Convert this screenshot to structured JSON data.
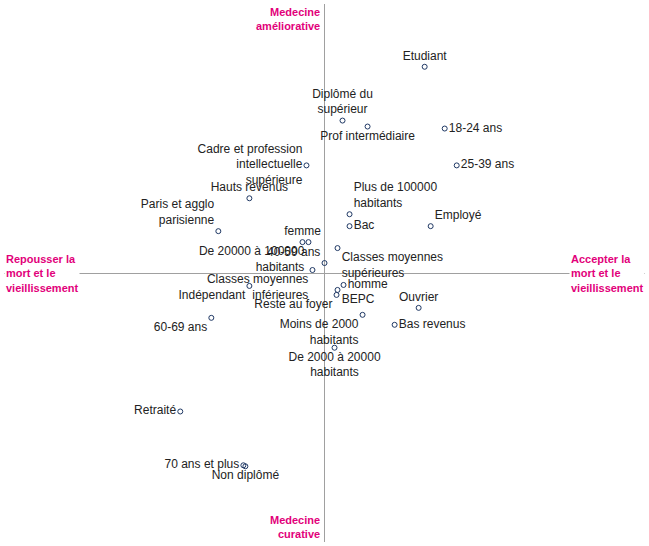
{
  "chart_data": {
    "type": "scatter",
    "labels": [
      "Etudiant",
      "Diplômé du supérieur",
      "Prof intermédiaire",
      "18-24 ans",
      "25-39 ans",
      "Cadre et profession intellectuelle supérieure",
      "Hauts revenus",
      "Paris et agglo parisienne",
      "Plus de 100000 habitants",
      "Bac",
      "Employé",
      "femme",
      "De 20000 à 100000 habitants",
      "Classes moyennes supérieures",
      "40-59 ans",
      "Classes moyennes inférieures",
      "homme",
      "BEPC",
      "Ouvrier",
      "Indépendant",
      "Reste au foyer",
      "Moins de 2000 habitants",
      "Bas revenus",
      "De 2000 à 20000 habitants",
      "60-69 ans",
      "Retraité",
      "70 ans et plus",
      "Non diplômé"
    ],
    "x": [
      1.0,
      0.18,
      0.43,
      1.2,
      1.32,
      -0.18,
      -0.75,
      -1.06,
      0.25,
      0.25,
      1.06,
      -0.22,
      -0.16,
      0.13,
      0.0,
      -0.12,
      0.19,
      0.13,
      0.94,
      -0.75,
      0.12,
      0.38,
      0.7,
      0.1,
      -1.13,
      -1.44,
      -0.81,
      -0.79
    ],
    "y": [
      2.07,
      1.53,
      1.47,
      1.45,
      1.08,
      1.08,
      0.75,
      0.42,
      0.59,
      0.47,
      0.47,
      0.31,
      0.31,
      0.25,
      0.1,
      0.03,
      -0.12,
      -0.17,
      -0.35,
      -0.13,
      -0.22,
      -0.42,
      -0.52,
      -0.75,
      -0.45,
      -1.39,
      -1.93,
      -1.94
    ],
    "color": "#1f3864",
    "marker": "circle-open",
    "annotations": {
      "top": "Medecine améliorative",
      "bottom": "Medecine curative",
      "left": "Repousser la mort et le vieillissement",
      "right": "Accepter la mort et le vieillissement"
    },
    "xlim": [
      -3.2,
      3.2
    ],
    "xticks": [
      -3.2,
      -1.6,
      0,
      1.6,
      3.2
    ],
    "ylim": [
      -2.7,
      2.7
    ],
    "yticks": [
      -2.7,
      -1.8,
      -0.9,
      0,
      0.9,
      1.8,
      2.7
    ],
    "grid": false,
    "tick_labels": false
  }
}
